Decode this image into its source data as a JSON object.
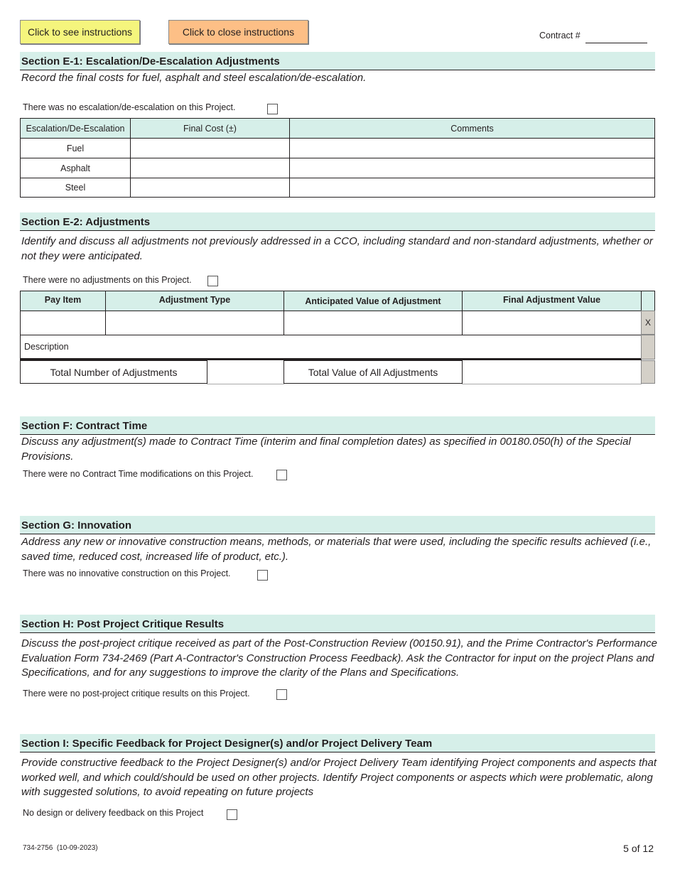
{
  "toolbar": {
    "see_instructions": "Click to see instructions",
    "close_instructions": "Click to close instructions",
    "contract_label": "Contract #",
    "contract_value": ""
  },
  "colors": {
    "section_header_bg": "#d6efe9",
    "see_button": "#f5f57d",
    "close_button": "#fdbf86"
  },
  "e1": {
    "title": "Section E-1: Escalation/De-Escalation Adjustments",
    "intro": "Record the final costs for fuel, asphalt and steel escalation/de-escalation.",
    "checkbox_label": "There was no escalation/de-escalation on this Project.",
    "checked": false,
    "headers": [
      "Escalation/De-Escalation",
      "Final Cost (±)",
      "Comments"
    ],
    "rows": [
      {
        "label": "Fuel",
        "cost": "",
        "comments": ""
      },
      {
        "label": "Asphalt",
        "cost": "",
        "comments": ""
      },
      {
        "label": "Steel",
        "cost": "",
        "comments": ""
      }
    ]
  },
  "e2": {
    "title": "Section E-2: Adjustments",
    "intro": "Identify and discuss all adjustments not previously addressed in a CCO, including standard and non-standard adjustments, whether or not they were anticipated.",
    "checkbox_label": "There were no adjustments on this Project.",
    "checked": false,
    "headers": [
      "Pay Item",
      "Adjustment Type",
      "Anticipated Value of Adjustment",
      "Final Adjustment Value"
    ],
    "delete_label": "X",
    "description_label": "Description",
    "total_number_label": "Total Number of Adjustments",
    "total_value_label": "Total Value of All Adjustments"
  },
  "f": {
    "title": "Section F: Contract Time",
    "intro": "Discuss any adjustment(s) made to Contract Time (interim and final completion dates) as specified in 00180.050(h) of the Special Provisions.",
    "checkbox_label": "There were no Contract Time modifications on this Project.",
    "checked": false
  },
  "g": {
    "title": "Section G: Innovation",
    "intro": "Address any new or innovative construction means, methods, or materials that were used, including the specific results achieved (i.e., saved time, reduced cost, increased life of product, etc.).",
    "checkbox_label": "There was no innovative construction on this Project.",
    "checked": false
  },
  "h": {
    "title": "Section H: Post Project Critique Results",
    "intro": "Discuss the post-project critique received as part of the Post-Construction Review (00150.91), and the Prime Contractor's Performance Evaluation Form 734-2469 (Part A-Contractor's Construction Process Feedback). Ask the Contractor for input on the project Plans and Specifications, and for any suggestions to improve the clarity of the Plans and Specifications.",
    "checkbox_label": "There were no post-project critique results on this Project.",
    "checked": false
  },
  "i": {
    "title": "Section I: Specific Feedback for Project Designer(s) and/or Project Delivery Team",
    "intro": "Provide constructive feedback to the Project Designer(s) and/or Project Delivery Team identifying Project components and aspects that worked well, and which could/should be used on other projects. Identify Project components or aspects which were problematic, along with suggested solutions, to avoid repeating on future projects",
    "checkbox_label": "No design or delivery feedback on this Project",
    "checked": false
  },
  "footer": {
    "form_number": "734-2756  (10-09-2023)",
    "page": "5 of 12"
  }
}
